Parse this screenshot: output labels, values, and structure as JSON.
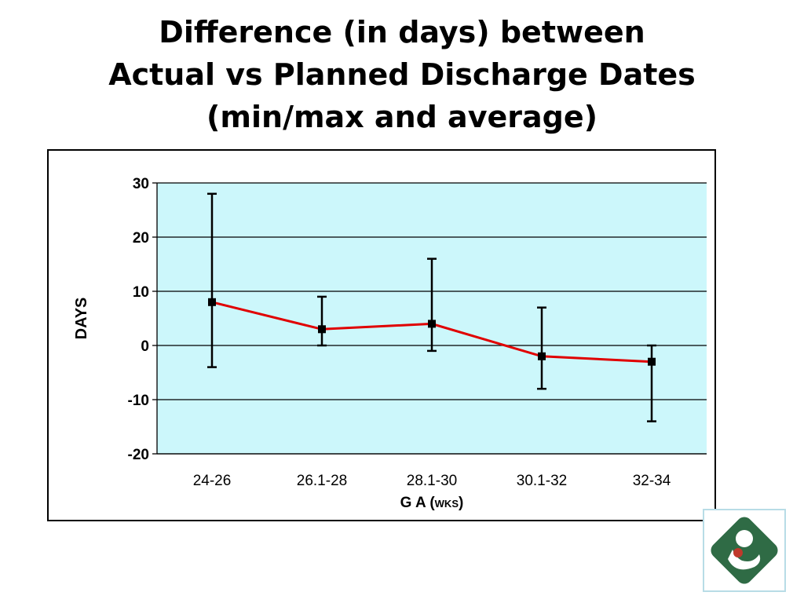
{
  "title_lines": [
    "Difference (in days) between",
    "Actual vs Planned Discharge Dates",
    "(min/max and average)"
  ],
  "colors": {
    "plot_background": "#ccf7fb",
    "line": "#e00000",
    "marker": "#000000",
    "gridline": "#000000",
    "logo_green": "#2f6b45",
    "logo_red": "#c0392b"
  },
  "logo": {
    "icon": "mother-and-baby-logo-icon"
  },
  "chart_data": {
    "type": "line",
    "title": "Difference (in days) between Actual vs Planned Discharge Dates (min/max and average)",
    "xlabel": "G A (wks)",
    "xlabel_main": "G A",
    "xlabel_unit": "(wks)",
    "ylabel": "DAYS",
    "ylim": [
      -20,
      30
    ],
    "yticks": [
      30,
      20,
      10,
      0,
      -10,
      -20
    ],
    "grid": "horizontal",
    "legend": "none",
    "categories": [
      "24-26",
      "26.1-28",
      "28.1-30",
      "30.1-32",
      "32-34"
    ],
    "series": [
      {
        "values": [
          8,
          3,
          4,
          -2,
          -3
        ],
        "min": [
          -4,
          0,
          -1,
          -8,
          -14
        ],
        "max": [
          28,
          9,
          16,
          7,
          0
        ]
      }
    ]
  }
}
